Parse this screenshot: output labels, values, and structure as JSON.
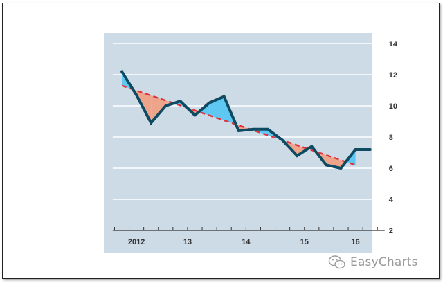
{
  "chart_data": {
    "type": "line",
    "title": "",
    "xlabel": "",
    "ylabel": "",
    "x_tick_labels": [
      "2012",
      "13",
      "14",
      "15",
      "16"
    ],
    "x_tick_positions": [
      2012.125,
      2013,
      2014,
      2015,
      2015.875
    ],
    "ylim": [
      2,
      14
    ],
    "y_ticks": [
      2,
      4,
      6,
      8,
      10,
      12,
      14
    ],
    "y_axis_side": "right",
    "grid": true,
    "legend": "none",
    "series": [
      {
        "role": "actual",
        "x": [
          2011.875,
          2012.125,
          2012.375,
          2012.625,
          2012.875,
          2013.125,
          2013.375,
          2013.625,
          2013.875,
          2014.125,
          2014.375,
          2014.625,
          2014.875,
          2015.125,
          2015.375,
          2015.625,
          2015.875,
          2016.125
        ],
        "values": [
          12.2,
          10.7,
          8.9,
          10.0,
          10.3,
          9.4,
          10.2,
          10.6,
          8.4,
          8.5,
          8.5,
          7.8,
          6.8,
          7.4,
          6.2,
          6.0,
          7.2,
          7.2
        ]
      },
      {
        "role": "trend",
        "x": [
          2011.875,
          2015.875
        ],
        "values": [
          11.3,
          6.2
        ],
        "style": "dashed"
      }
    ],
    "colors": {
      "plot_background": "#cddbe7",
      "grid": "#ffffff",
      "actual_line": "#0e4a61",
      "trend_line": "#e0323e",
      "above_trend_fill": "#5ec8f2",
      "below_trend_fill": "#eea48a",
      "axis": "#333333",
      "tick_label": "#333333"
    }
  },
  "watermark": {
    "text": "EasyCharts",
    "icon": "wechat-icon"
  }
}
